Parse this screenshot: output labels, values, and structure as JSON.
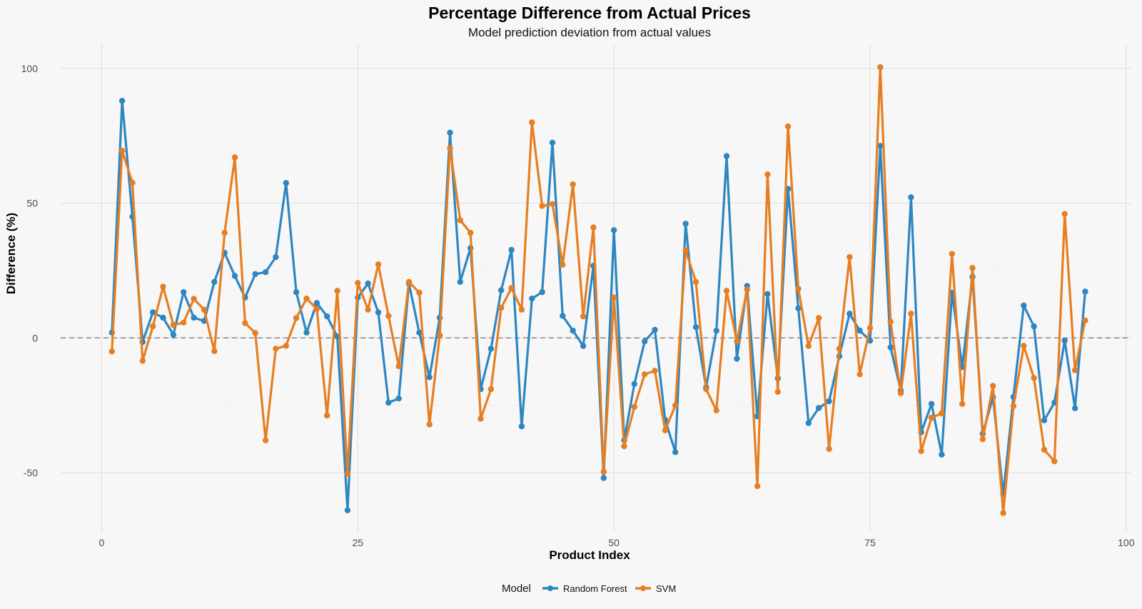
{
  "chart_data": {
    "type": "line",
    "title": "Percentage Difference from Actual Prices",
    "subtitle": "Model prediction deviation from actual values",
    "xlabel": "Product Index",
    "ylabel": "Difference (%)",
    "xlim": [
      -4,
      100.5
    ],
    "ylim": [
      -72,
      109
    ],
    "x_ticks": [
      0,
      25,
      50,
      75,
      100
    ],
    "y_ticks": [
      -50,
      0,
      50,
      100
    ],
    "grid": true,
    "reference_line": 0,
    "legend": {
      "title": "Model",
      "position": "bottom"
    },
    "x": [
      1,
      2,
      3,
      4,
      5,
      6,
      7,
      8,
      9,
      10,
      11,
      12,
      13,
      14,
      15,
      16,
      17,
      18,
      19,
      20,
      21,
      22,
      23,
      24,
      25,
      26,
      27,
      28,
      29,
      30,
      31,
      32,
      33,
      34,
      35,
      36,
      37,
      38,
      39,
      40,
      41,
      42,
      43,
      44,
      45,
      46,
      47,
      48,
      49,
      50,
      51,
      52,
      53,
      54,
      55,
      56,
      57,
      58,
      59,
      60,
      61,
      62,
      63,
      64,
      65,
      66,
      67,
      68,
      69,
      70,
      71,
      72,
      73,
      74,
      75,
      76,
      77,
      78,
      79,
      80,
      81,
      82,
      83,
      84,
      85,
      86,
      87,
      88,
      89,
      90,
      91,
      92,
      93,
      94,
      95,
      96
    ],
    "series": [
      {
        "name": "Random Forest",
        "color": "#2e86c1",
        "values": [
          2,
          88,
          45,
          -1.5,
          9.5,
          7.5,
          1.2,
          17,
          7.5,
          6.3,
          20.8,
          31.6,
          23,
          15,
          23.7,
          24.4,
          30,
          57.5,
          17,
          2,
          13,
          8,
          0.5,
          -64,
          15,
          20.2,
          9.5,
          -24,
          -22.5,
          20.2,
          2,
          -14.6,
          7.5,
          76.2,
          20.8,
          33.4,
          -19,
          -4,
          17.7,
          32.7,
          -32.8,
          14.6,
          17,
          72.5,
          8.2,
          2.7,
          -3,
          26.8,
          -52,
          40,
          -38,
          -17.1,
          -1.3,
          3,
          -30.4,
          -42.4,
          42.4,
          4,
          -18.3,
          2.7,
          67.5,
          -7.7,
          19.3,
          -29.1,
          16.3,
          -15,
          55.3,
          11,
          -31.6,
          -26,
          -23.5,
          -6.8,
          9,
          2.7,
          -1,
          71.3,
          -3.5,
          -19.5,
          52.2,
          -35,
          -24.5,
          -43.3,
          16.8,
          -10.8,
          22.7,
          -35.6,
          -22,
          -58,
          -21.9,
          12,
          4.3,
          -30.6,
          -24,
          -1,
          -26.1,
          17.2
        ]
      },
      {
        "name": "SVM",
        "color": "#e67e22",
        "values": [
          -5,
          69.5,
          57.6,
          -8.5,
          4.3,
          19,
          4.8,
          5.7,
          14.5,
          10.5,
          -4.9,
          39,
          67,
          5.5,
          1.8,
          -38,
          -4,
          -2.9,
          7.4,
          14.6,
          10.8,
          -28.8,
          17.5,
          -50.3,
          20.4,
          10.5,
          27.3,
          8.2,
          -10.5,
          20.8,
          16.8,
          -32.1,
          1,
          70.5,
          43.7,
          39,
          -30,
          -19,
          11.2,
          18.5,
          10.5,
          80,
          49,
          49.7,
          27.2,
          57,
          8,
          41,
          -49.7,
          15,
          -40.2,
          -25.6,
          -13.5,
          -12.2,
          -34.3,
          -25.1,
          32.5,
          20.8,
          -19,
          -26.9,
          17.5,
          -1.3,
          18,
          -55,
          60.7,
          -20,
          78.5,
          18.2,
          -3,
          7.4,
          -41.2,
          -4,
          30,
          -13.5,
          3.7,
          100.5,
          6,
          -20.5,
          9,
          -42,
          -29.6,
          -28,
          31.2,
          -24.5,
          26,
          -37.6,
          -17.8,
          -65,
          -25.3,
          -2.9,
          -14.9,
          -41.5,
          -45.8,
          46,
          -12,
          6.5
        ]
      }
    ]
  }
}
